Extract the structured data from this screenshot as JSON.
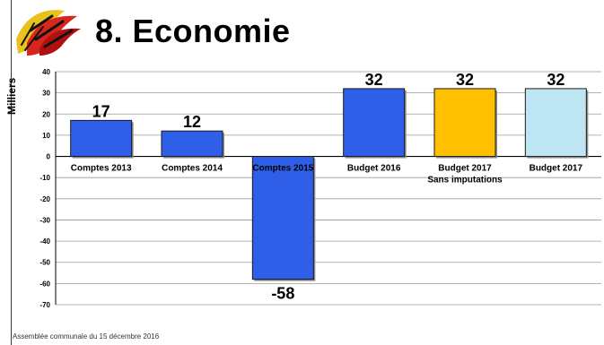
{
  "title": "8.  Economie",
  "footer": "Assemblée communale du 15 décembre 2016",
  "chart_data": {
    "type": "bar",
    "ylabel": "Milliers",
    "ylim": [
      -70,
      40
    ],
    "yticks": [
      40,
      30,
      20,
      10,
      0,
      -10,
      -20,
      -30,
      -40,
      -50,
      -60,
      -70
    ],
    "grid": true,
    "categories": [
      "Comptes 2013",
      "Comptes 2014",
      "Comptes 2015",
      "Budget 2016",
      "Budget 2017",
      "Budget 2017"
    ],
    "category_sublabels": [
      "",
      "",
      "",
      "",
      "Sans imputations",
      ""
    ],
    "values": [
      17,
      12,
      -58,
      32,
      32,
      32
    ],
    "data_labels": [
      "17",
      "12",
      "-58",
      "32",
      "32",
      "32"
    ],
    "colors": [
      "#2f5fe8",
      "#2f5fe8",
      "#2f5fe8",
      "#2f5fe8",
      "#ffc000",
      "#bde6f2"
    ]
  }
}
